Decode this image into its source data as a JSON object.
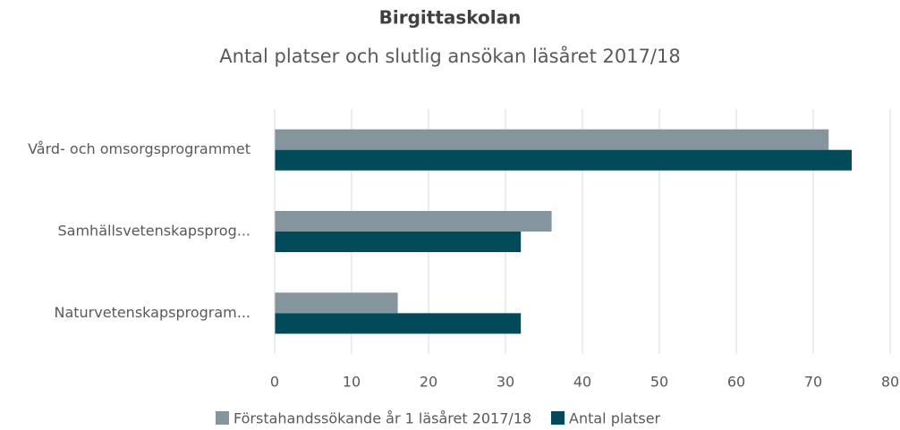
{
  "chart_data": {
    "type": "bar",
    "orientation": "horizontal",
    "title": "Birgittaskolan",
    "subtitle": "Antal platser och slutlig ansökan läsåret 2017/18",
    "categories": [
      "Vård- och omsorgsprogrammet",
      "Samhällsvetenskapsprog...",
      "Naturvetenskapsprogram..."
    ],
    "series": [
      {
        "name": "Förstahandssökande år 1 läsåret 2017/18",
        "color": "#84959d",
        "values": [
          72,
          36,
          16
        ]
      },
      {
        "name": "Antal platser",
        "color": "#004a5a",
        "values": [
          75,
          32,
          32
        ]
      }
    ],
    "xlim": [
      0,
      80
    ],
    "xticks": [
      0,
      10,
      20,
      30,
      40,
      50,
      60,
      70,
      80
    ],
    "grid": true,
    "legend": "bottom"
  }
}
